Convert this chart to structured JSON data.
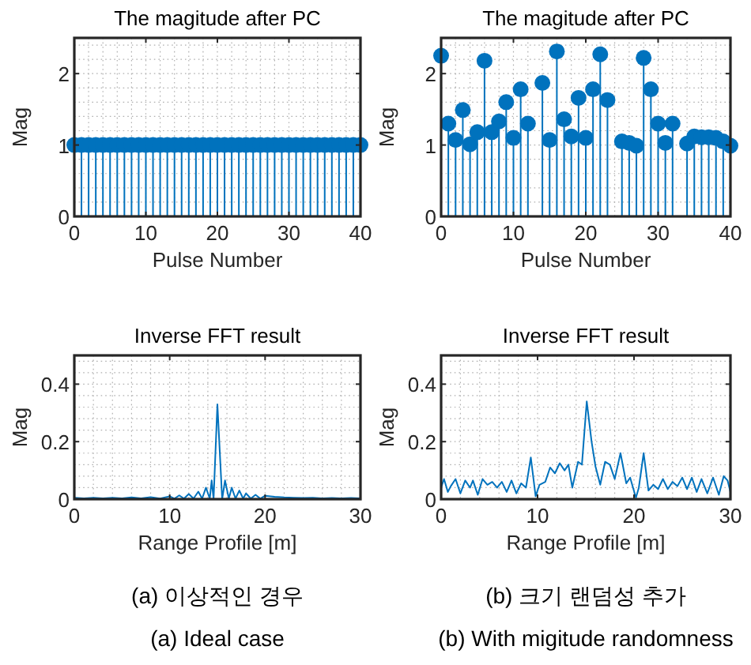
{
  "chart_data": [
    {
      "type": "lollipop",
      "title": "The magitude after PC",
      "xlabel": "Pulse Number",
      "ylabel": "Mag",
      "xlim": [
        0,
        40
      ],
      "ylim": [
        0,
        2.5
      ],
      "xticks": [
        0,
        10,
        20,
        30,
        40
      ],
      "yticks": [
        0,
        1,
        2
      ],
      "grid": true,
      "marker": "circle",
      "series": [
        {
          "color": "#0072bd",
          "x": [
            0,
            1,
            2,
            3,
            4,
            5,
            6,
            7,
            8,
            9,
            10,
            11,
            12,
            13,
            14,
            15,
            16,
            17,
            18,
            19,
            20,
            21,
            22,
            23,
            24,
            25,
            26,
            27,
            28,
            29,
            30,
            31,
            32,
            33,
            34,
            35,
            36,
            37,
            38,
            39,
            40
          ],
          "values": [
            1,
            1,
            1,
            1,
            1,
            1,
            1,
            1,
            1,
            1,
            1,
            1,
            1,
            1,
            1,
            1,
            1,
            1,
            1,
            1,
            1,
            1,
            1,
            1,
            1,
            1,
            1,
            1,
            1,
            1,
            1,
            1,
            1,
            1,
            1,
            1,
            1,
            1,
            1,
            1,
            1
          ]
        }
      ]
    },
    {
      "type": "lollipop",
      "title": "The magitude after PC",
      "xlabel": "Pulse Number",
      "ylabel": "Mag",
      "xlim": [
        0,
        40
      ],
      "ylim": [
        0,
        2.5
      ],
      "xticks": [
        0,
        10,
        20,
        30,
        40
      ],
      "yticks": [
        0,
        1,
        2
      ],
      "grid": true,
      "marker": "circle",
      "series": [
        {
          "color": "#0072bd",
          "x": [
            0,
            1,
            2,
            3,
            4,
            5,
            6,
            7,
            8,
            9,
            10,
            11,
            12,
            13,
            14,
            15,
            16,
            17,
            18,
            19,
            20,
            21,
            22,
            23,
            24,
            25,
            26,
            27,
            28,
            29,
            30,
            31,
            32,
            33,
            34,
            35,
            36,
            37,
            38,
            39,
            40
          ],
          "values": [
            2.25,
            1.3,
            1.07,
            1.49,
            1.01,
            1.18,
            2.18,
            1.18,
            1.33,
            1.6,
            1.1,
            1.78,
            1.3,
            null,
            1.87,
            1.07,
            2.31,
            1.36,
            1.12,
            1.66,
            1.1,
            1.78,
            2.27,
            1.63,
            null,
            1.05,
            1.03,
            0.99,
            2.22,
            1.78,
            1.3,
            1.03,
            1.3,
            null,
            1.02,
            1.12,
            1.11,
            1.11,
            1.1,
            1.05,
            0.99
          ]
        }
      ]
    },
    {
      "type": "line",
      "title": "Inverse FFT result",
      "xlabel": "Range Profile [m]",
      "ylabel": "Mag",
      "xlim": [
        0,
        30
      ],
      "ylim": [
        0,
        0.5
      ],
      "xticks": [
        0,
        10,
        20,
        30
      ],
      "yticks": [
        0,
        0.2,
        0.4
      ],
      "grid": true,
      "annotations": [
        "(a) 이상적인 경우",
        "(a) Ideal case"
      ],
      "series": [
        {
          "color": "#0072bd",
          "x": [
            0,
            1,
            2,
            3,
            4,
            5,
            6,
            7,
            8,
            9,
            10,
            10.5,
            11,
            11.5,
            12,
            12.5,
            13,
            13.4,
            13.8,
            14.2,
            14.4,
            14.6,
            15,
            15.5,
            15.8,
            16.2,
            16.5,
            16.9,
            17.3,
            17.7,
            18,
            18.5,
            19,
            19.5,
            20,
            21,
            22,
            23,
            24,
            25,
            26,
            27,
            28,
            29,
            30
          ],
          "values": [
            0.005,
            0.003,
            0.005,
            0.003,
            0.005,
            0.003,
            0.006,
            0.003,
            0.007,
            0.002,
            0.01,
            0.002,
            0.013,
            0.002,
            0.018,
            0.002,
            0.026,
            0.002,
            0.04,
            0.002,
            0.065,
            0,
            0.33,
            0,
            0.065,
            0.002,
            0.04,
            0.002,
            0.03,
            0.002,
            0.02,
            0.002,
            0.015,
            0.002,
            0.012,
            0.008,
            0.006,
            0.005,
            0.004,
            0.005,
            0.003,
            0.004,
            0.003,
            0.004,
            0.003
          ]
        }
      ]
    },
    {
      "type": "line",
      "title": "Inverse FFT result",
      "xlabel": "Range Profile [m]",
      "ylabel": "Mag",
      "xlim": [
        0,
        30
      ],
      "ylim": [
        0,
        0.5
      ],
      "xticks": [
        0,
        10,
        20,
        30
      ],
      "yticks": [
        0,
        0.2,
        0.4
      ],
      "grid": true,
      "annotations": [
        "(b) 크기 랜덤성 추가",
        "(b) With migitude randomness"
      ],
      "series": [
        {
          "color": "#0072bd",
          "x": [
            0,
            0.3,
            0.7,
            1,
            1.5,
            2,
            2.5,
            3,
            3.3,
            3.8,
            4.3,
            4.8,
            5.3,
            5.8,
            6.3,
            6.8,
            7.3,
            7.8,
            8.3,
            8.8,
            9.3,
            9.8,
            10.2,
            10.8,
            11.3,
            11.8,
            12.3,
            12.8,
            13.2,
            13.6,
            14.2,
            14.6,
            15.1,
            15.6,
            16,
            16.5,
            17,
            17.5,
            18,
            18.6,
            19.2,
            19.6,
            20.2,
            20.5,
            21,
            21.5,
            22,
            22.5,
            23,
            23.5,
            24,
            24.5,
            25,
            25.5,
            26,
            26.5,
            27,
            27.6,
            28.2,
            28.8,
            29.3,
            29.7,
            30
          ],
          "values": [
            0.04,
            0.07,
            0.025,
            0.045,
            0.07,
            0.02,
            0.065,
            0.04,
            0.065,
            0.015,
            0.07,
            0.05,
            0.06,
            0.04,
            0.06,
            0.025,
            0.065,
            0.02,
            0.055,
            0.04,
            0.145,
            0.01,
            0.05,
            0.06,
            0.11,
            0.09,
            0.125,
            0.1,
            0.12,
            0.04,
            0.13,
            0.12,
            0.34,
            0.2,
            0.115,
            0.05,
            0.13,
            0.12,
            0.07,
            0.16,
            0.055,
            0.075,
            0.005,
            0.04,
            0.16,
            0.03,
            0.05,
            0.035,
            0.07,
            0.035,
            0.06,
            0.045,
            0.075,
            0.035,
            0.075,
            0.025,
            0.07,
            0.02,
            0.075,
            0.015,
            0.08,
            0.065,
            0.025
          ]
        }
      ]
    }
  ]
}
